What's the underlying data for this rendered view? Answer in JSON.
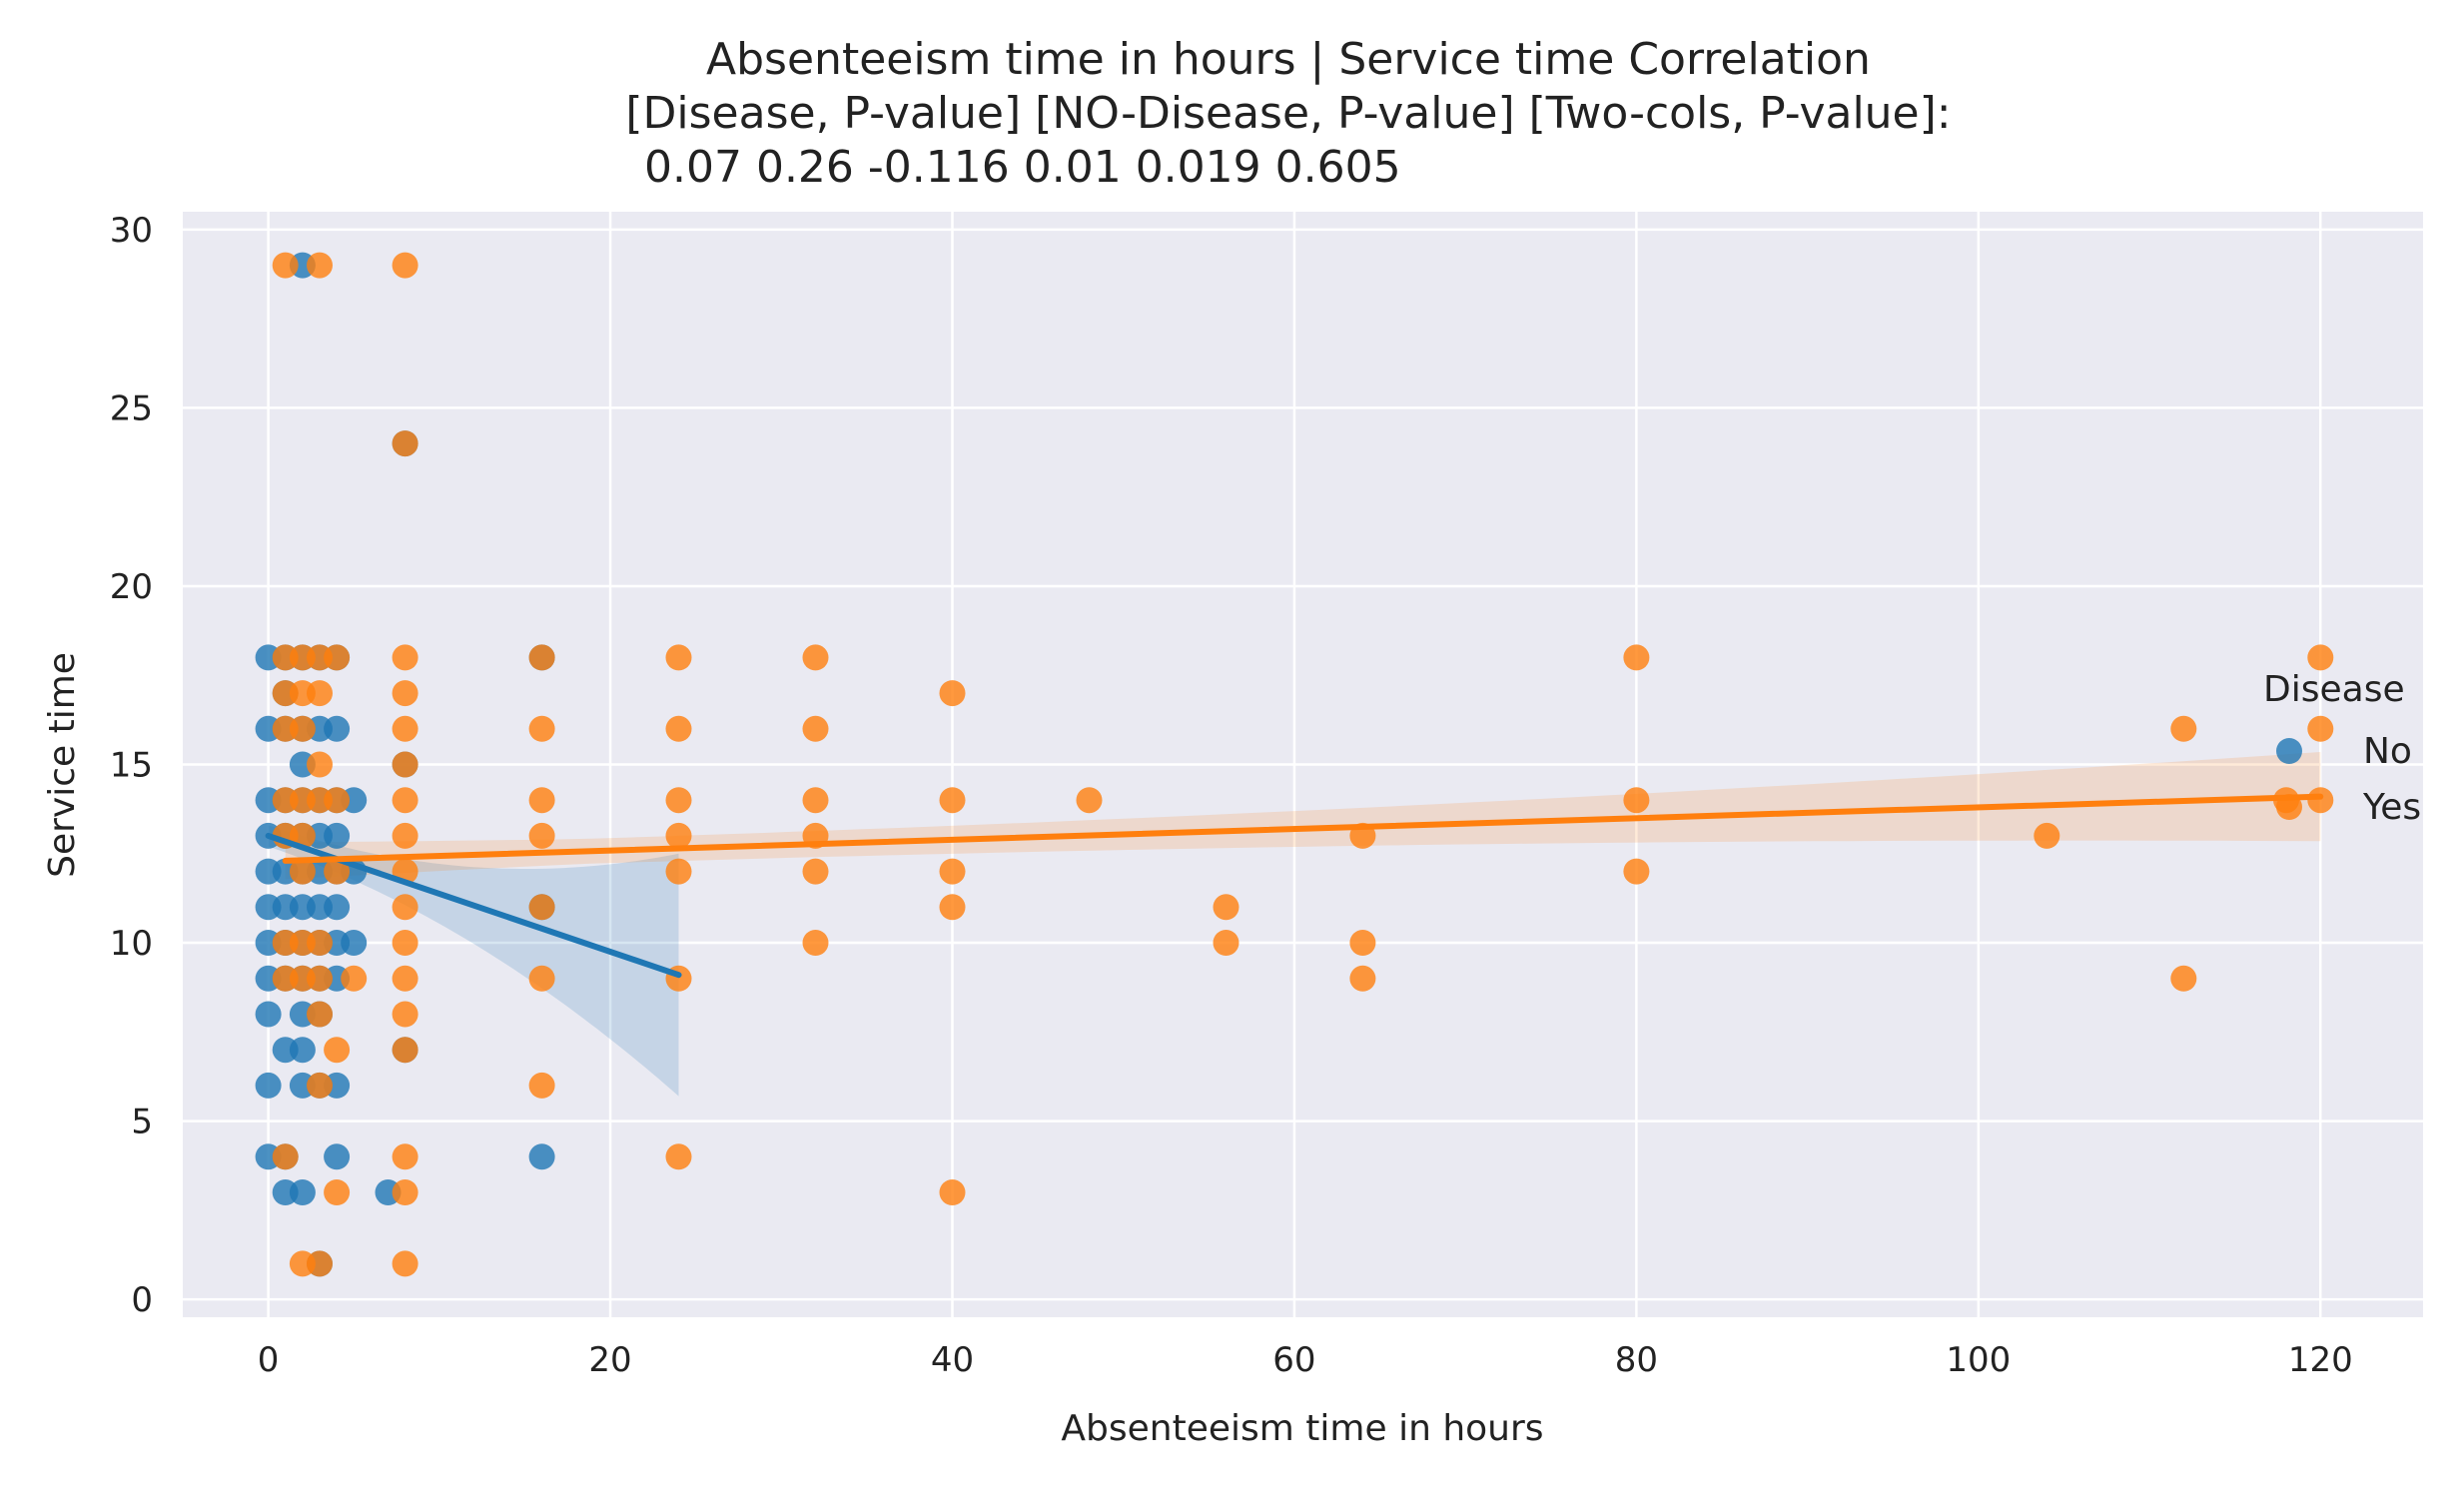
{
  "chart_data": {
    "type": "scatter",
    "title_lines": [
      "Absenteeism time in hours | Service time    Correlation",
      "[Disease,        P-value]    [NO-Disease,     P-value]   [Two-cols,  P-value]:",
      "0.07               0.26               -0.116                   0.01          0.019            0.605"
    ],
    "xlabel": "Absenteeism time in hours",
    "ylabel": "Service time",
    "xlim": [
      -5,
      126
    ],
    "ylim": [
      -0.5,
      30.5
    ],
    "xticks": [
      0,
      20,
      40,
      60,
      80,
      100,
      120
    ],
    "yticks": [
      0,
      5,
      10,
      15,
      20,
      25,
      30
    ],
    "grid": true,
    "legend": {
      "title": "Disease",
      "position": "right",
      "entries": [
        "No",
        "Yes"
      ]
    },
    "colors": {
      "No": "#1f77b4",
      "Yes": "#ff7f0e",
      "background": "#eaeaf2",
      "grid": "#ffffff"
    },
    "series": [
      {
        "name": "No",
        "points": [
          [
            0,
            18
          ],
          [
            0,
            16
          ],
          [
            0,
            14
          ],
          [
            0,
            13
          ],
          [
            0,
            12
          ],
          [
            0,
            11
          ],
          [
            0,
            10
          ],
          [
            0,
            9
          ],
          [
            0,
            8
          ],
          [
            0,
            6
          ],
          [
            0,
            4
          ],
          [
            1,
            18
          ],
          [
            1,
            17
          ],
          [
            1,
            16
          ],
          [
            1,
            14
          ],
          [
            1,
            13
          ],
          [
            1,
            12
          ],
          [
            1,
            11
          ],
          [
            1,
            10
          ],
          [
            1,
            9
          ],
          [
            1,
            7
          ],
          [
            1,
            4
          ],
          [
            1,
            3
          ],
          [
            2,
            29
          ],
          [
            2,
            18
          ],
          [
            2,
            16
          ],
          [
            2,
            15
          ],
          [
            2,
            14
          ],
          [
            2,
            13
          ],
          [
            2,
            12
          ],
          [
            2,
            11
          ],
          [
            2,
            10
          ],
          [
            2,
            9
          ],
          [
            2,
            8
          ],
          [
            2,
            7
          ],
          [
            2,
            6
          ],
          [
            2,
            3
          ],
          [
            3,
            18
          ],
          [
            3,
            16
          ],
          [
            3,
            14
          ],
          [
            3,
            13
          ],
          [
            3,
            12
          ],
          [
            3,
            11
          ],
          [
            3,
            10
          ],
          [
            3,
            9
          ],
          [
            3,
            8
          ],
          [
            3,
            6
          ],
          [
            3,
            1
          ],
          [
            4,
            18
          ],
          [
            4,
            16
          ],
          [
            4,
            14
          ],
          [
            4,
            13
          ],
          [
            4,
            12
          ],
          [
            4,
            11
          ],
          [
            4,
            10
          ],
          [
            4,
            9
          ],
          [
            4,
            6
          ],
          [
            4,
            4
          ],
          [
            5,
            14
          ],
          [
            5,
            12
          ],
          [
            5,
            10
          ],
          [
            7,
            3
          ],
          [
            8,
            24
          ],
          [
            8,
            15
          ],
          [
            8,
            7
          ],
          [
            16,
            18
          ],
          [
            16,
            11
          ],
          [
            16,
            4
          ]
        ],
        "regression": {
          "x": [
            0,
            24
          ],
          "y": [
            13.0,
            9.1
          ]
        }
      },
      {
        "name": "Yes",
        "points": [
          [
            1,
            29
          ],
          [
            3,
            29
          ],
          [
            8,
            29
          ],
          [
            8,
            24
          ],
          [
            1,
            18
          ],
          [
            2,
            18
          ],
          [
            3,
            18
          ],
          [
            4,
            18
          ],
          [
            8,
            18
          ],
          [
            16,
            18
          ],
          [
            24,
            18
          ],
          [
            32,
            18
          ],
          [
            80,
            18
          ],
          [
            120,
            18
          ],
          [
            1,
            17
          ],
          [
            2,
            17
          ],
          [
            3,
            17
          ],
          [
            8,
            17
          ],
          [
            40,
            17
          ],
          [
            1,
            16
          ],
          [
            2,
            16
          ],
          [
            8,
            16
          ],
          [
            16,
            16
          ],
          [
            24,
            16
          ],
          [
            32,
            16
          ],
          [
            112,
            16
          ],
          [
            120,
            16
          ],
          [
            3,
            15
          ],
          [
            8,
            15
          ],
          [
            1,
            14
          ],
          [
            2,
            14
          ],
          [
            3,
            14
          ],
          [
            4,
            14
          ],
          [
            8,
            14
          ],
          [
            16,
            14
          ],
          [
            24,
            14
          ],
          [
            32,
            14
          ],
          [
            40,
            14
          ],
          [
            48,
            14
          ],
          [
            80,
            14
          ],
          [
            118,
            14
          ],
          [
            120,
            14
          ],
          [
            1,
            13
          ],
          [
            2,
            13
          ],
          [
            8,
            13
          ],
          [
            16,
            13
          ],
          [
            24,
            13
          ],
          [
            32,
            13
          ],
          [
            64,
            13
          ],
          [
            104,
            13
          ],
          [
            2,
            12
          ],
          [
            4,
            12
          ],
          [
            8,
            12
          ],
          [
            24,
            12
          ],
          [
            32,
            12
          ],
          [
            40,
            12
          ],
          [
            80,
            12
          ],
          [
            8,
            11
          ],
          [
            16,
            11
          ],
          [
            40,
            11
          ],
          [
            56,
            11
          ],
          [
            1,
            10
          ],
          [
            2,
            10
          ],
          [
            3,
            10
          ],
          [
            8,
            10
          ],
          [
            32,
            10
          ],
          [
            56,
            10
          ],
          [
            64,
            10
          ],
          [
            1,
            9
          ],
          [
            2,
            9
          ],
          [
            3,
            9
          ],
          [
            5,
            9
          ],
          [
            8,
            9
          ],
          [
            16,
            9
          ],
          [
            24,
            9
          ],
          [
            64,
            9
          ],
          [
            112,
            9
          ],
          [
            3,
            8
          ],
          [
            8,
            8
          ],
          [
            4,
            7
          ],
          [
            8,
            7
          ],
          [
            3,
            6
          ],
          [
            16,
            6
          ],
          [
            1,
            4
          ],
          [
            8,
            4
          ],
          [
            24,
            4
          ],
          [
            4,
            3
          ],
          [
            8,
            3
          ],
          [
            40,
            3
          ],
          [
            2,
            1
          ],
          [
            3,
            1
          ],
          [
            8,
            1
          ]
        ],
        "regression": {
          "x": [
            1,
            120
          ],
          "y": [
            12.3,
            14.1
          ]
        }
      }
    ]
  }
}
